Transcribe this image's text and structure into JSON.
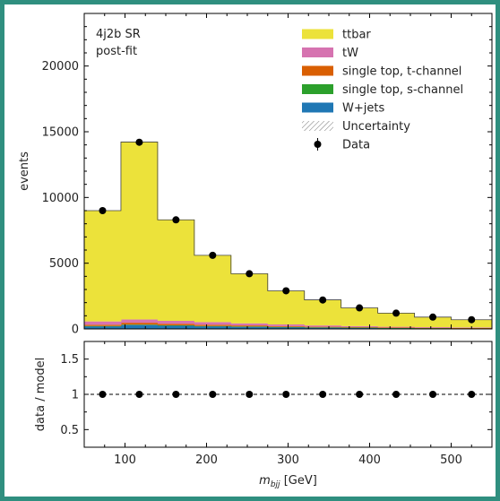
{
  "chart_data": {
    "type": "bar",
    "upper": {
      "annotation": [
        "4j2b SR",
        "post-fit"
      ],
      "ylabel": "events",
      "ylim": [
        0,
        24000
      ],
      "xlim": [
        50,
        550
      ],
      "yticks": [
        0,
        5000,
        10000,
        15000,
        20000
      ],
      "bin_edges": [
        50,
        95,
        140,
        185,
        230,
        275,
        320,
        365,
        410,
        455,
        500,
        550
      ],
      "stack": [
        {
          "name": "W+jets",
          "color": "#1f77b4",
          "values": [
            200,
            300,
            250,
            200,
            170,
            140,
            110,
            90,
            70,
            60,
            50
          ]
        },
        {
          "name": "single top, s-channel",
          "color": "#2ca02c",
          "values": [
            20,
            30,
            25,
            20,
            15,
            12,
            10,
            8,
            6,
            5,
            4
          ]
        },
        {
          "name": "single top, t-channel",
          "color": "#d95f02",
          "values": [
            100,
            140,
            120,
            100,
            80,
            60,
            45,
            35,
            28,
            22,
            18
          ]
        },
        {
          "name": "tW",
          "color": "#d673b0",
          "values": [
            250,
            250,
            220,
            200,
            160,
            130,
            100,
            80,
            60,
            50,
            40
          ]
        },
        {
          "name": "ttbar",
          "color": "#ece23a",
          "values": [
            8430,
            13500,
            7685,
            5080,
            3775,
            2558,
            1945,
            1387,
            1036,
            763,
            588
          ]
        }
      ],
      "data": {
        "name": "Data",
        "x": [
          72.5,
          117.5,
          162.5,
          207.5,
          252.5,
          297.5,
          342.5,
          387.5,
          432.5,
          477.5,
          525
        ],
        "y": [
          9000,
          14200,
          8300,
          5600,
          4200,
          2900,
          2200,
          1600,
          1200,
          900,
          700
        ]
      },
      "uncertainty_label": "Uncertainty",
      "legend_order": [
        "ttbar",
        "tW",
        "single top, t-channel",
        "single top, s-channel",
        "W+jets",
        "Uncertainty",
        "Data"
      ]
    },
    "lower": {
      "ylabel": "data / model",
      "ylim": [
        0.25,
        1.75
      ],
      "yticks": [
        0.5,
        1,
        1.5
      ],
      "ratio": [
        1,
        1,
        1,
        1,
        1,
        1,
        1,
        1,
        1,
        1,
        1
      ]
    },
    "xlabel_main": "m",
    "xlabel_sub": "bjj",
    "xlabel_unit": " [GeV]",
    "xticks": [
      100,
      200,
      300,
      400,
      500
    ]
  }
}
